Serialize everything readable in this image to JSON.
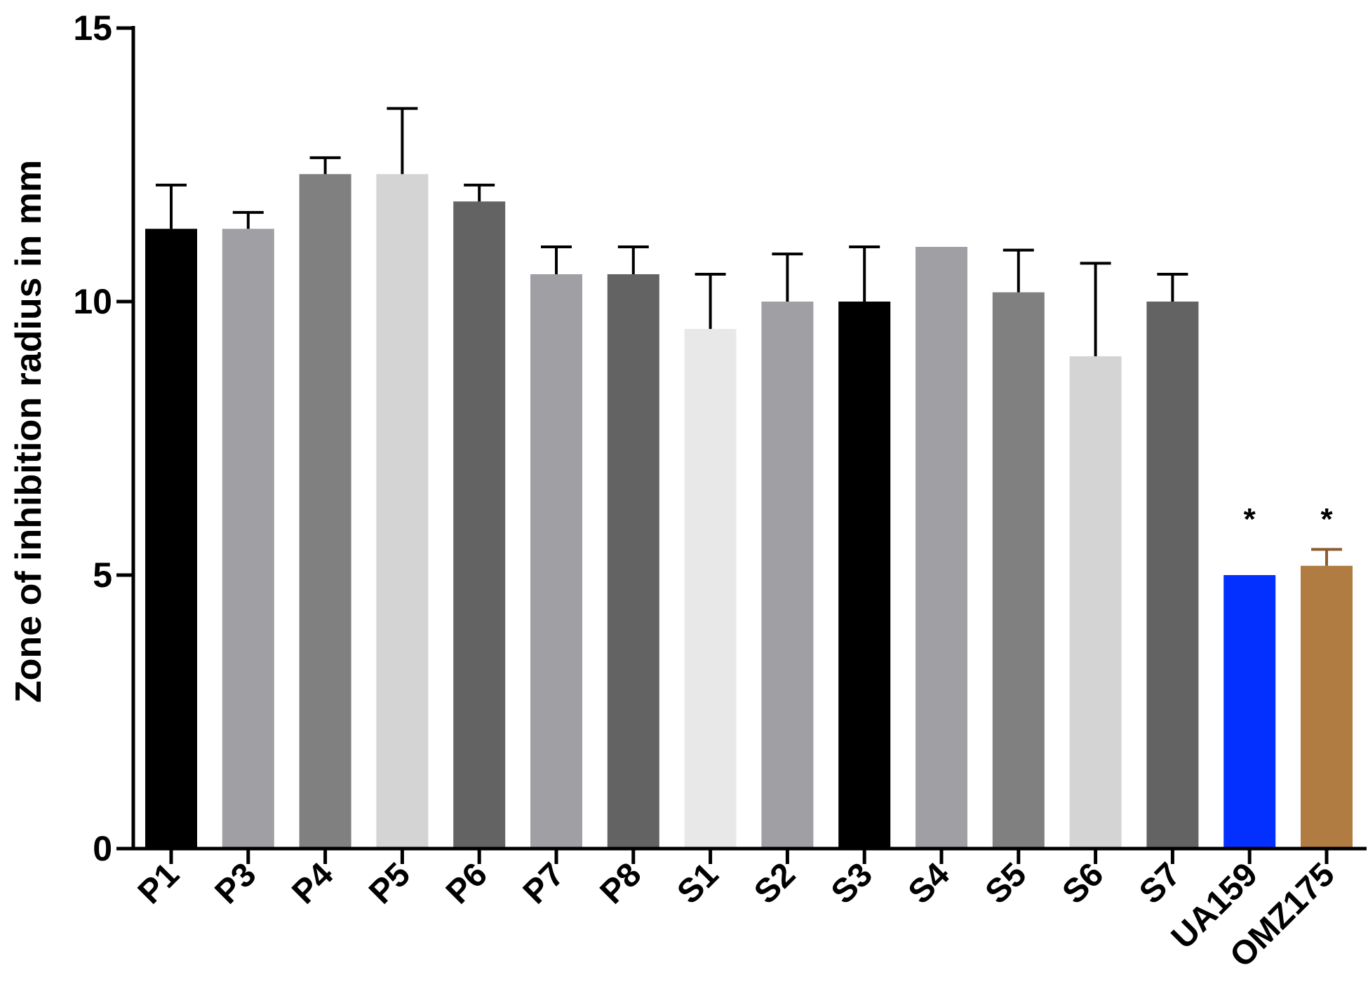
{
  "chart_data": {
    "type": "bar",
    "title": "",
    "xlabel": "",
    "ylabel": "Zone of inhibition radius in mm",
    "ylim": [
      0,
      15
    ],
    "yticks": [
      "0",
      "5",
      "10",
      "15"
    ],
    "grid": false,
    "legend": "none",
    "categories": [
      "P1",
      "P3",
      "P4",
      "P5",
      "P6",
      "P7",
      "P8",
      "S1",
      "S2",
      "S3",
      "S4",
      "S5",
      "S6",
      "S7",
      "UA159",
      "OMZ175"
    ],
    "values": [
      11.33,
      11.33,
      12.33,
      12.33,
      11.83,
      10.5,
      10.5,
      9.5,
      10.0,
      10.0,
      11.0,
      10.17,
      9.0,
      10.0,
      5.0,
      5.17
    ],
    "errors": [
      0.8,
      0.3,
      0.3,
      1.2,
      0.3,
      0.5,
      0.5,
      1.0,
      0.87,
      1.0,
      0.0,
      0.77,
      1.7,
      0.5,
      0.0,
      0.3
    ],
    "colors": [
      "#000000",
      "#a0a0a4",
      "#808080",
      "#d4d4d4",
      "#636363",
      "#a0a0a4",
      "#636363",
      "#e8e8e8",
      "#a0a0a4",
      "#000000",
      "#a0a0a4",
      "#808080",
      "#d4d4d4",
      "#636363",
      "#0430ff",
      "#b07c41"
    ],
    "error_bar_colors": [
      "#000000",
      "#000000",
      "#000000",
      "#000000",
      "#000000",
      "#000000",
      "#000000",
      "#000000",
      "#000000",
      "#000000",
      "#000000",
      "#000000",
      "#000000",
      "#000000",
      "#000000",
      "#8a5c2e"
    ],
    "annotations": [
      "",
      "",
      "",
      "",
      "",
      "",
      "",
      "",
      "",
      "",
      "",
      "",
      "",
      "",
      "*",
      "*"
    ]
  }
}
